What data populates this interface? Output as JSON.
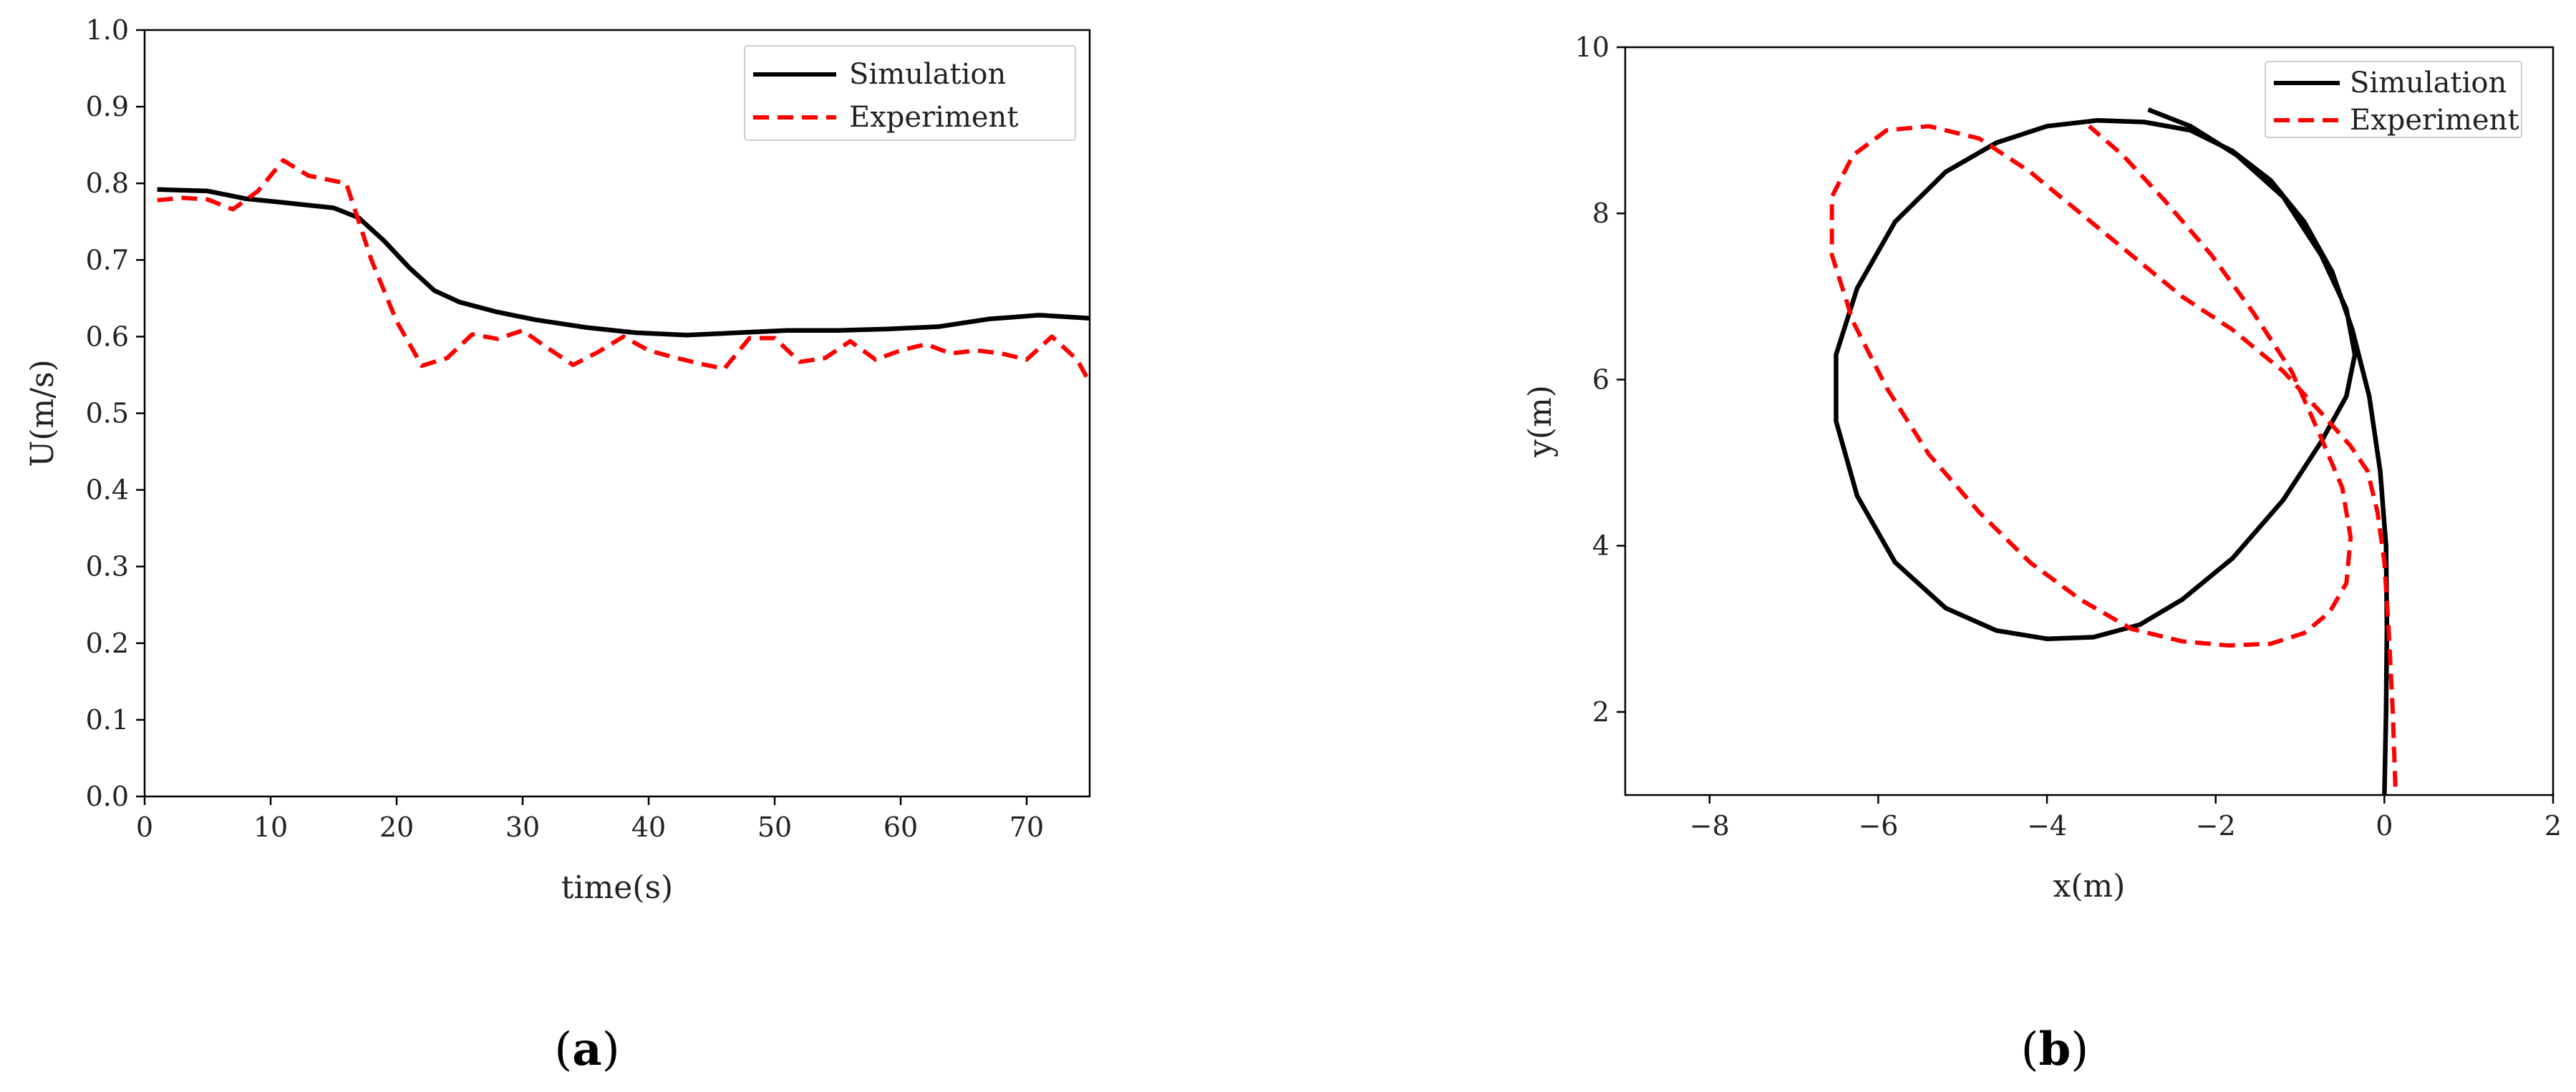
{
  "colors": {
    "simulation": "#000000",
    "experiment": "#ff0000"
  },
  "panels": [
    {
      "open": "(",
      "letter": "a",
      "close": ")"
    },
    {
      "open": "(",
      "letter": "b",
      "close": ")"
    }
  ],
  "chart_data": [
    {
      "type": "line",
      "xlabel": "time(s)",
      "ylabel": "U(m/s)",
      "xlim": [
        0,
        75
      ],
      "ylim": [
        0,
        1.0
      ],
      "xticks": [
        0,
        10,
        20,
        30,
        40,
        50,
        60,
        70
      ],
      "yticks": [
        0.0,
        0.1,
        0.2,
        0.3,
        0.4,
        0.5,
        0.6,
        0.7,
        0.8,
        0.9,
        1.0
      ],
      "xtick_labels": [
        "0",
        "10",
        "20",
        "30",
        "40",
        "50",
        "60",
        "70"
      ],
      "ytick_labels": [
        "0.0",
        "0.1",
        "0.2",
        "0.3",
        "0.4",
        "0.5",
        "0.6",
        "0.7",
        "0.8",
        "0.9",
        "1.0"
      ],
      "grid": false,
      "legend": "top-right",
      "series": [
        {
          "name": "Simulation",
          "style": "solid",
          "x": [
            1,
            5,
            8,
            11,
            15,
            17,
            19,
            21,
            23,
            25,
            28,
            31,
            35,
            39,
            43,
            47,
            51,
            55,
            59,
            63,
            67,
            71,
            75
          ],
          "y": [
            0.792,
            0.79,
            0.78,
            0.775,
            0.768,
            0.755,
            0.725,
            0.69,
            0.66,
            0.645,
            0.632,
            0.622,
            0.612,
            0.605,
            0.602,
            0.605,
            0.608,
            0.608,
            0.61,
            0.613,
            0.623,
            0.628,
            0.624
          ]
        },
        {
          "name": "Experiment",
          "style": "dashed",
          "x": [
            1,
            3,
            5,
            7,
            9,
            11,
            13,
            16,
            18,
            20,
            22,
            24,
            26,
            28,
            30,
            32,
            34,
            36,
            38,
            40,
            42,
            44,
            46,
            48,
            50,
            52,
            54,
            56,
            58,
            60,
            62,
            64,
            66,
            68,
            70,
            72,
            74,
            75
          ],
          "y": [
            0.778,
            0.781,
            0.779,
            0.766,
            0.79,
            0.83,
            0.81,
            0.8,
            0.7,
            0.62,
            0.562,
            0.572,
            0.603,
            0.597,
            0.608,
            0.585,
            0.563,
            0.58,
            0.6,
            0.582,
            0.573,
            0.565,
            0.558,
            0.598,
            0.598,
            0.567,
            0.572,
            0.594,
            0.57,
            0.582,
            0.59,
            0.578,
            0.582,
            0.578,
            0.57,
            0.6,
            0.57,
            0.54
          ]
        }
      ]
    },
    {
      "type": "line",
      "xlabel": "x(m)",
      "ylabel": "y(m)",
      "xlim": [
        -9,
        2
      ],
      "ylim": [
        1,
        10
      ],
      "xticks": [
        -8,
        -6,
        -4,
        -2,
        0,
        2
      ],
      "yticks": [
        2,
        4,
        6,
        8,
        10
      ],
      "xtick_labels": [
        "−8",
        "−6",
        "−4",
        "−2",
        "0",
        "2"
      ],
      "ytick_labels": [
        "2",
        "4",
        "6",
        "8",
        "10"
      ],
      "grid": false,
      "legend": "top-right",
      "series": [
        {
          "name": "Simulation",
          "style": "solid",
          "x": [
            0.0,
            0.02,
            0.03,
            0.02,
            -0.05,
            -0.18,
            -0.38,
            -0.62,
            -0.95,
            -1.35,
            -1.8,
            -2.3,
            -2.85,
            -3.4,
            -4.0,
            -4.6,
            -5.2,
            -5.8,
            -6.25,
            -6.5,
            -6.5,
            -6.25,
            -5.8,
            -5.2,
            -4.6,
            -4.0,
            -3.45,
            -2.9,
            -2.4,
            -1.8,
            -1.2,
            -0.75,
            -0.45,
            -0.35,
            -0.45,
            -0.75,
            -1.2,
            -1.75,
            -2.3,
            -2.8
          ],
          "y": [
            1.0,
            2.0,
            3.0,
            4.0,
            4.9,
            5.8,
            6.6,
            7.3,
            7.9,
            8.4,
            8.75,
            9.0,
            9.1,
            9.12,
            9.05,
            8.85,
            8.5,
            7.9,
            7.1,
            6.3,
            5.5,
            4.6,
            3.8,
            3.25,
            2.98,
            2.88,
            2.9,
            3.05,
            3.35,
            3.85,
            4.55,
            5.25,
            5.8,
            6.3,
            6.85,
            7.5,
            8.2,
            8.7,
            9.05,
            9.25
          ]
        },
        {
          "name": "Experiment",
          "style": "dashed",
          "x": [
            0.13,
            0.1,
            0.05,
            0.0,
            -0.08,
            -0.2,
            -0.4,
            -0.75,
            -1.2,
            -1.8,
            -2.4,
            -3.0,
            -3.6,
            -4.2,
            -4.8,
            -5.4,
            -5.9,
            -6.3,
            -6.55,
            -6.55,
            -6.3,
            -5.9,
            -5.4,
            -4.8,
            -4.2,
            -3.6,
            -3.0,
            -2.4,
            -1.85,
            -1.35,
            -0.95,
            -0.65,
            -0.45,
            -0.4,
            -0.5,
            -0.75,
            -1.1,
            -1.55,
            -2.05,
            -2.6,
            -3.1,
            -3.5
          ],
          "y": [
            1.1,
            2.0,
            3.0,
            3.8,
            4.4,
            4.9,
            5.2,
            5.6,
            6.1,
            6.6,
            7.0,
            7.5,
            8.0,
            8.5,
            8.9,
            9.05,
            9.0,
            8.7,
            8.2,
            7.5,
            6.7,
            5.9,
            5.1,
            4.4,
            3.8,
            3.35,
            3.0,
            2.85,
            2.8,
            2.82,
            2.95,
            3.2,
            3.55,
            4.1,
            4.7,
            5.3,
            6.1,
            6.8,
            7.5,
            8.15,
            8.7,
            9.05
          ]
        }
      ]
    }
  ]
}
